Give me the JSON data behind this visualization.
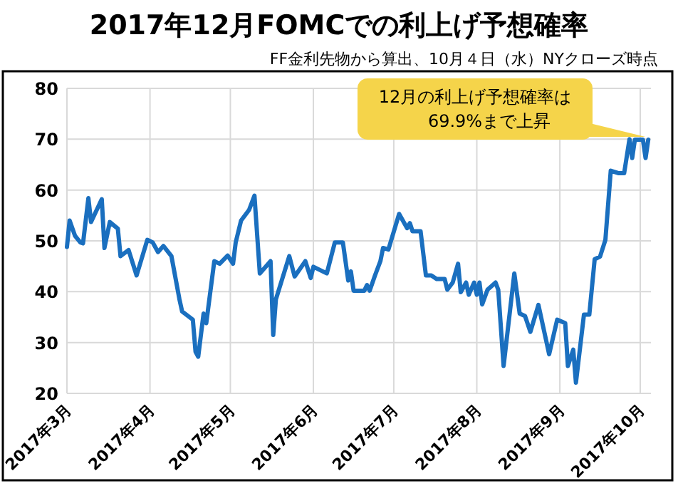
{
  "chart_data": {
    "type": "line",
    "title": "2017年12月FOMCでの利上げ予想確率",
    "subtitle": "FF金利先物から算出、10月４日（水）NYクローズ時点",
    "annotations": [
      {
        "text": "12月の利上げ予想確率は\n69.9%まで上昇",
        "x": "2017-10-04",
        "y": 69.9
      }
    ],
    "x": [
      "2017-03-01",
      "2017-03-02",
      "2017-03-04",
      "2017-03-06",
      "2017-03-07",
      "2017-03-09",
      "2017-03-10",
      "2017-03-14",
      "2017-03-15",
      "2017-03-17",
      "2017-03-20",
      "2017-03-21",
      "2017-03-24",
      "2017-03-27",
      "2017-03-31",
      "2017-04-02",
      "2017-04-04",
      "2017-04-06",
      "2017-04-09",
      "2017-04-12",
      "2017-04-13",
      "2017-04-17",
      "2017-04-18",
      "2017-04-19",
      "2017-04-21",
      "2017-04-22",
      "2017-04-25",
      "2017-04-27",
      "2017-04-30",
      "2017-05-02",
      "2017-05-03",
      "2017-05-05",
      "2017-05-08",
      "2017-05-10",
      "2017-05-12",
      "2017-05-16",
      "2017-05-17",
      "2017-05-18",
      "2017-05-23",
      "2017-05-25",
      "2017-05-29",
      "2017-05-31",
      "2017-06-01",
      "2017-06-06",
      "2017-06-09",
      "2017-06-12",
      "2017-06-14",
      "2017-06-15",
      "2017-06-16",
      "2017-06-20",
      "2017-06-21",
      "2017-06-22",
      "2017-06-24",
      "2017-06-26",
      "2017-06-27",
      "2017-06-29",
      "2017-07-03",
      "2017-07-06",
      "2017-07-07",
      "2017-07-08",
      "2017-07-11",
      "2017-07-13",
      "2017-07-15",
      "2017-07-17",
      "2017-07-20",
      "2017-07-21",
      "2017-07-23",
      "2017-07-25",
      "2017-07-26",
      "2017-07-28",
      "2017-07-29",
      "2017-07-31",
      "2017-08-01",
      "2017-08-02",
      "2017-08-03",
      "2017-08-05",
      "2017-08-08",
      "2017-08-09",
      "2017-08-11",
      "2017-08-15",
      "2017-08-17",
      "2017-08-19",
      "2017-08-21",
      "2017-08-24",
      "2017-08-28",
      "2017-08-31",
      "2017-09-03",
      "2017-09-04",
      "2017-09-06",
      "2017-09-07",
      "2017-09-10",
      "2017-09-12",
      "2017-09-14",
      "2017-09-16",
      "2017-09-18",
      "2017-09-20",
      "2017-09-23",
      "2017-09-25",
      "2017-09-27",
      "2017-09-28",
      "2017-09-29",
      "2017-10-02",
      "2017-10-03",
      "2017-10-04"
    ],
    "series": [
      {
        "color": "#1a6fbf",
        "values": [
          48.8,
          54,
          51,
          49.7,
          49.5,
          58.4,
          53.7,
          58.2,
          48.6,
          53.7,
          52.4,
          47,
          48.2,
          43.2,
          50.2,
          49.7,
          47.8,
          49,
          47,
          38.5,
          36.1,
          34.5,
          28.2,
          27.2,
          35.7,
          33.8,
          46,
          45.5,
          47.1,
          45.5,
          49.7,
          54,
          56.1,
          58.9,
          43.6,
          46,
          31.5,
          38.5,
          47,
          43,
          46,
          42.7,
          44.9,
          43.6,
          49.7,
          49.7,
          42.2,
          44,
          40.2,
          40.2,
          41.3,
          40.2,
          43.2,
          46,
          48.6,
          48.3,
          55.3,
          52.5,
          53.5,
          51.9,
          51.9,
          43.2,
          43.2,
          42.5,
          42.5,
          40.4,
          41.8,
          45.5,
          39.9,
          41.8,
          39.4,
          41.8,
          39.4,
          41.8,
          37.5,
          40.4,
          41.8,
          40.4,
          25.4,
          43.6,
          35.7,
          35.2,
          32.1,
          37.4,
          27.7,
          34.5,
          33.8,
          25.4,
          28.6,
          22.1,
          35.5,
          35.5,
          46.4,
          46.9,
          50.2,
          63.8,
          63.3,
          63.3,
          70,
          66.3,
          69.9,
          69.9,
          66.3,
          69.9
        ]
      }
    ],
    "xlim": [
      "2017-03-01",
      "2017-10-05"
    ],
    "ylim": [
      20,
      80
    ],
    "yticks": [
      20,
      30,
      40,
      50,
      60,
      70,
      80
    ],
    "xticks": [
      {
        "value": "2017-03-01",
        "label": "2017年3月"
      },
      {
        "value": "2017-04-01",
        "label": "2017年4月"
      },
      {
        "value": "2017-05-01",
        "label": "2017年5月"
      },
      {
        "value": "2017-06-01",
        "label": "2017年6月"
      },
      {
        "value": "2017-07-01",
        "label": "2017年7月"
      },
      {
        "value": "2017-08-01",
        "label": "2017年8月"
      },
      {
        "value": "2017-09-01",
        "label": "2017年9月"
      },
      {
        "value": "2017-10-01",
        "label": "2017年10月"
      }
    ],
    "grid": true
  }
}
